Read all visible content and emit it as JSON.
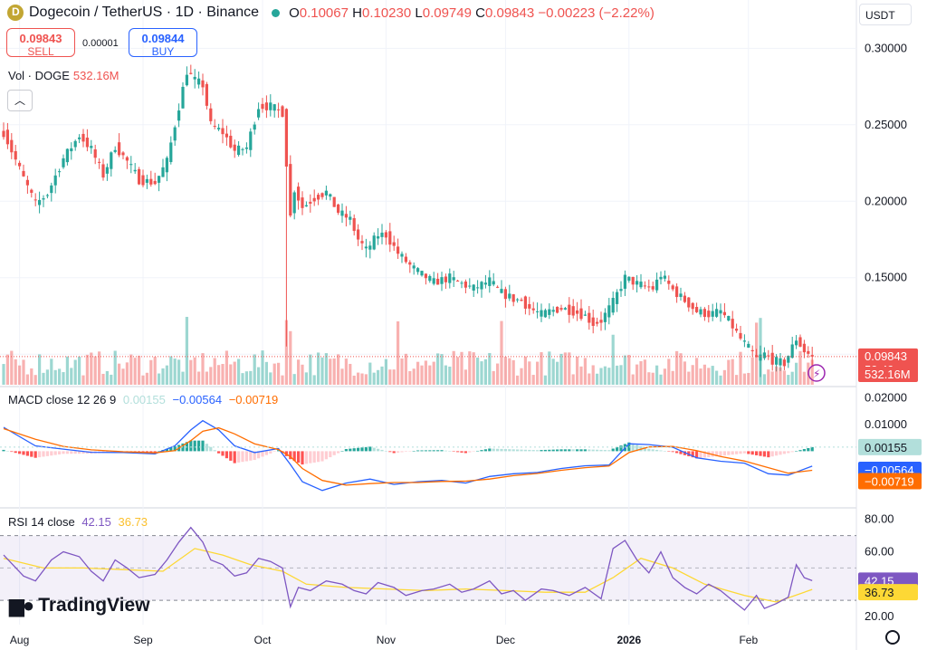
{
  "header": {
    "symbol": "Dogecoin / TetherUS · 1D · Binance",
    "ohlc": {
      "o_label": "O",
      "o": "0.10067",
      "h_label": "H",
      "h": "0.10230",
      "l_label": "L",
      "l": "0.09749",
      "c_label": "C",
      "c": "0.09843",
      "change": "−0.00223 (−2.22%)"
    },
    "currency": "USDT"
  },
  "trade": {
    "sell_price": "0.09843",
    "sell_label": "SELL",
    "spread": "0.00001",
    "buy_price": "0.09844",
    "buy_label": "BUY"
  },
  "volume_legend": {
    "label": "Vol · DOGE",
    "value": "532.16M"
  },
  "macd_legend": {
    "label": "MACD close 12 26 9",
    "hist": "0.00155",
    "macd": "−0.00564",
    "signal": "−0.00719"
  },
  "rsi_legend": {
    "label": "RSI 14 close",
    "rsi": "42.15",
    "ma": "36.73"
  },
  "branding": {
    "name": "TradingView"
  },
  "price_tags": {
    "last": "0.09843",
    "countdown": "59:49",
    "volume": "532.16M"
  },
  "colors": {
    "up": "#26a69a",
    "down": "#ef5350",
    "macd": "#2962ff",
    "signal": "#ff6d00",
    "rsi": "#7e57c2",
    "rsi_ma": "#fdd835",
    "axis_text": "#131722"
  },
  "chart_data": [
    {
      "type": "candlestick",
      "title": "Dogecoin / TetherUS · 1D · Binance",
      "x_ticks": [
        "Aug",
        "Sep",
        "Oct",
        "Nov",
        "Dec",
        "2026",
        "Feb"
      ],
      "y_ticks": [
        "0.30000",
        "0.25000",
        "0.20000",
        "0.15000",
        "0.10000"
      ],
      "ylim": [
        0.08,
        0.315
      ],
      "last_price": 0.09843,
      "grid": true,
      "close_path": [
        [
          0,
          0.245
        ],
        [
          5,
          0.215
        ],
        [
          8,
          0.198
        ],
        [
          11,
          0.205
        ],
        [
          15,
          0.228
        ],
        [
          19,
          0.243
        ],
        [
          22,
          0.234
        ],
        [
          25,
          0.217
        ],
        [
          28,
          0.236
        ],
        [
          31,
          0.226
        ],
        [
          34,
          0.214
        ],
        [
          38,
          0.212
        ],
        [
          41,
          0.226
        ],
        [
          44,
          0.262
        ],
        [
          46,
          0.285
        ],
        [
          48,
          0.279
        ],
        [
          50,
          0.276
        ],
        [
          52,
          0.25
        ],
        [
          55,
          0.245
        ],
        [
          58,
          0.233
        ],
        [
          61,
          0.235
        ],
        [
          64,
          0.262
        ],
        [
          67,
          0.262
        ],
        [
          70,
          0.258
        ],
        [
          71,
          0.225
        ],
        [
          72,
          0.19
        ],
        [
          73,
          0.208
        ],
        [
          75,
          0.196
        ],
        [
          78,
          0.202
        ],
        [
          81,
          0.206
        ],
        [
          84,
          0.193
        ],
        [
          87,
          0.188
        ],
        [
          89,
          0.175
        ],
        [
          91,
          0.168
        ],
        [
          94,
          0.178
        ],
        [
          96,
          0.178
        ],
        [
          99,
          0.166
        ],
        [
          102,
          0.158
        ],
        [
          105,
          0.152
        ],
        [
          108,
          0.147
        ],
        [
          112,
          0.15
        ],
        [
          115,
          0.146
        ],
        [
          118,
          0.143
        ],
        [
          122,
          0.148
        ],
        [
          125,
          0.14
        ],
        [
          128,
          0.136
        ],
        [
          130,
          0.135
        ],
        [
          132,
          0.13
        ],
        [
          135,
          0.126
        ],
        [
          137,
          0.128
        ],
        [
          140,
          0.13
        ],
        [
          143,
          0.128
        ],
        [
          146,
          0.125
        ],
        [
          148,
          0.12
        ],
        [
          150,
          0.122
        ],
        [
          153,
          0.134
        ],
        [
          156,
          0.15
        ],
        [
          159,
          0.146
        ],
        [
          163,
          0.143
        ],
        [
          165,
          0.152
        ],
        [
          168,
          0.142
        ],
        [
          171,
          0.135
        ],
        [
          174,
          0.128
        ],
        [
          177,
          0.126
        ],
        [
          180,
          0.128
        ],
        [
          182,
          0.122
        ],
        [
          185,
          0.11
        ],
        [
          187,
          0.104
        ],
        [
          189,
          0.097
        ],
        [
          191,
          0.1
        ],
        [
          193,
          0.096
        ],
        [
          196,
          0.094
        ],
        [
          199,
          0.11
        ],
        [
          201,
          0.102
        ],
        [
          203,
          0.0984
        ]
      ]
    },
    {
      "type": "bar",
      "title": "Vol · DOGE",
      "last_value": "532.16M"
    },
    {
      "type": "line",
      "title": "MACD close 12 26 9",
      "y_ticks": [
        "0.02000",
        "0.01000",
        "0.00155",
        "−0.00564",
        "−0.00719"
      ],
      "ylim": [
        -0.021,
        0.024
      ],
      "series": [
        {
          "name": "MACD",
          "points": [
            [
              0,
              0.009
            ],
            [
              8,
              0.002
            ],
            [
              15,
              0.0008
            ],
            [
              22,
              -0.0004
            ],
            [
              30,
              -0.0005
            ],
            [
              38,
              -0.001
            ],
            [
              43,
              0.002
            ],
            [
              47,
              0.008
            ],
            [
              50,
              0.0115
            ],
            [
              54,
              0.008
            ],
            [
              58,
              0.002
            ],
            [
              63,
              -0.0005
            ],
            [
              69,
              0.001
            ],
            [
              72,
              -0.005
            ],
            [
              75,
              -0.0115
            ],
            [
              80,
              -0.0148
            ],
            [
              86,
              -0.012
            ],
            [
              92,
              -0.0105
            ],
            [
              98,
              -0.0125
            ],
            [
              104,
              -0.0115
            ],
            [
              110,
              -0.011
            ],
            [
              116,
              -0.012
            ],
            [
              122,
              -0.0095
            ],
            [
              128,
              -0.0085
            ],
            [
              134,
              -0.008
            ],
            [
              140,
              -0.0065
            ],
            [
              146,
              -0.0055
            ],
            [
              152,
              -0.0052
            ],
            [
              157,
              0.0028
            ],
            [
              162,
              0.0025
            ],
            [
              168,
              0.0015
            ],
            [
              174,
              -0.0025
            ],
            [
              180,
              -0.0038
            ],
            [
              186,
              -0.0045
            ],
            [
              192,
              -0.0085
            ],
            [
              197,
              -0.009
            ],
            [
              203,
              -0.00564
            ]
          ]
        },
        {
          "name": "Signal",
          "points": [
            [
              0,
              0.0085
            ],
            [
              8,
              0.0045
            ],
            [
              15,
              0.0018
            ],
            [
              22,
              0.0005
            ],
            [
              30,
              -0.0002
            ],
            [
              38,
              -0.0006
            ],
            [
              43,
              0.0002
            ],
            [
              47,
              0.004
            ],
            [
              50,
              0.0075
            ],
            [
              54,
              0.0088
            ],
            [
              58,
              0.0065
            ],
            [
              63,
              0.0028
            ],
            [
              69,
              0.0006
            ],
            [
              72,
              -0.002
            ],
            [
              75,
              -0.0065
            ],
            [
              80,
              -0.011
            ],
            [
              86,
              -0.0128
            ],
            [
              92,
              -0.0122
            ],
            [
              98,
              -0.0118
            ],
            [
              104,
              -0.0118
            ],
            [
              110,
              -0.0114
            ],
            [
              116,
              -0.0113
            ],
            [
              122,
              -0.0105
            ],
            [
              128,
              -0.0092
            ],
            [
              134,
              -0.0084
            ],
            [
              140,
              -0.0072
            ],
            [
              146,
              -0.0062
            ],
            [
              152,
              -0.0056
            ],
            [
              157,
              -0.0005
            ],
            [
              162,
              0.0016
            ],
            [
              168,
              0.0018
            ],
            [
              174,
              0.0002
            ],
            [
              180,
              -0.002
            ],
            [
              186,
              -0.0037
            ],
            [
              192,
              -0.0062
            ],
            [
              197,
              -0.0083
            ],
            [
              203,
              -0.00719
            ]
          ]
        }
      ]
    },
    {
      "type": "line",
      "title": "RSI 14 close",
      "y_ticks": [
        "80.00",
        "60.00",
        "42.15",
        "36.73",
        "20.00"
      ],
      "ylim": [
        15,
        86
      ],
      "bands": [
        30,
        50,
        70
      ],
      "series": [
        {
          "name": "RSI",
          "points": [
            [
              0,
              58
            ],
            [
              5,
              45
            ],
            [
              8,
              42
            ],
            [
              12,
              55
            ],
            [
              15,
              60
            ],
            [
              19,
              57
            ],
            [
              22,
              48
            ],
            [
              25,
              42
            ],
            [
              28,
              55
            ],
            [
              31,
              50
            ],
            [
              34,
              44
            ],
            [
              38,
              46
            ],
            [
              41,
              55
            ],
            [
              44,
              66
            ],
            [
              47,
              75
            ],
            [
              50,
              66
            ],
            [
              52,
              55
            ],
            [
              55,
              52
            ],
            [
              58,
              45
            ],
            [
              61,
              47
            ],
            [
              64,
              56
            ],
            [
              67,
              54
            ],
            [
              70,
              50
            ],
            [
              72,
              26
            ],
            [
              74,
              38
            ],
            [
              77,
              36
            ],
            [
              81,
              42
            ],
            [
              85,
              40
            ],
            [
              88,
              36
            ],
            [
              91,
              34
            ],
            [
              94,
              41
            ],
            [
              98,
              38
            ],
            [
              101,
              33
            ],
            [
              105,
              36
            ],
            [
              108,
              37
            ],
            [
              112,
              40
            ],
            [
              115,
              35
            ],
            [
              118,
              37
            ],
            [
              122,
              42
            ],
            [
              125,
              34
            ],
            [
              128,
              36
            ],
            [
              131,
              30
            ],
            [
              135,
              37
            ],
            [
              138,
              36
            ],
            [
              142,
              33
            ],
            [
              146,
              38
            ],
            [
              150,
              31
            ],
            [
              153,
              62
            ],
            [
              156,
              67
            ],
            [
              159,
              55
            ],
            [
              162,
              47
            ],
            [
              165,
              60
            ],
            [
              168,
              44
            ],
            [
              171,
              38
            ],
            [
              174,
              34
            ],
            [
              177,
              40
            ],
            [
              180,
              36
            ],
            [
              183,
              30
            ],
            [
              186,
              24
            ],
            [
              189,
              33
            ],
            [
              191,
              25
            ],
            [
              194,
              28
            ],
            [
              197,
              32
            ],
            [
              199,
              52
            ],
            [
              201,
              44
            ],
            [
              203,
              42.15
            ]
          ]
        },
        {
          "name": "RSI MA",
          "points": [
            [
              0,
              56
            ],
            [
              10,
              50
            ],
            [
              20,
              50
            ],
            [
              30,
              49
            ],
            [
              40,
              48
            ],
            [
              48,
              62
            ],
            [
              55,
              58
            ],
            [
              62,
              52
            ],
            [
              70,
              48
            ],
            [
              76,
              40
            ],
            [
              86,
              38
            ],
            [
              96,
              37
            ],
            [
              106,
              36
            ],
            [
              116,
              37
            ],
            [
              126,
              36
            ],
            [
              136,
              35
            ],
            [
              146,
              35
            ],
            [
              153,
              44
            ],
            [
              160,
              56
            ],
            [
              168,
              50
            ],
            [
              176,
              40
            ],
            [
              186,
              33
            ],
            [
              194,
              29
            ],
            [
              203,
              36.73
            ]
          ]
        }
      ]
    }
  ]
}
